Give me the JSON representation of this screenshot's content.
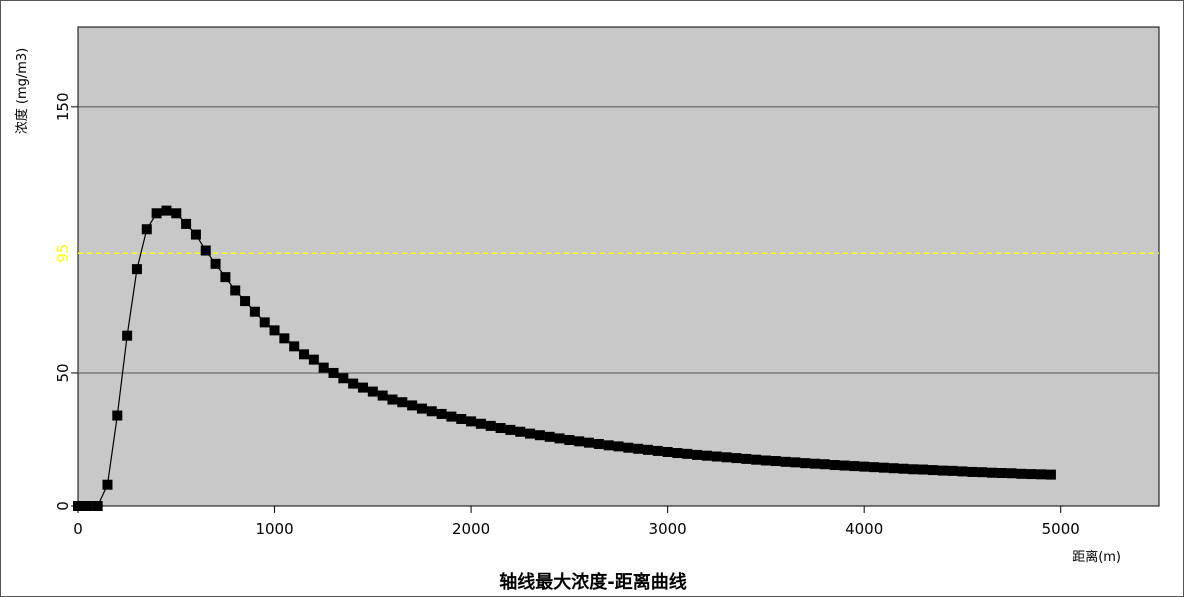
{
  "chart_data": {
    "type": "line",
    "title": "轴线最大浓度-距离曲线",
    "xlabel": "距离(m)",
    "ylabel": "浓度 (mg/m3)",
    "xlim": [
      0,
      5500
    ],
    "ylim": [
      0,
      180
    ],
    "xticks": [
      "0",
      "1000",
      "2000",
      "3000",
      "4000",
      "5000"
    ],
    "yticks": [
      "0",
      "50",
      "150"
    ],
    "reference_line": {
      "value": 95,
      "label": "95",
      "color": "#ffff00",
      "style": "dashed"
    },
    "grid": "horizontal lines at 50 and 150",
    "colors": {
      "plot_background": "#c8c8c8",
      "series": "#000000",
      "gridline": "#555555"
    },
    "series": [
      {
        "marker": "square",
        "x": [
          0,
          50,
          100,
          150,
          200,
          250,
          300,
          350,
          400,
          450,
          500,
          550,
          600,
          650,
          700,
          750,
          800,
          850,
          900,
          950,
          1000,
          1050,
          1100,
          1150,
          1200,
          1250,
          1300,
          1350,
          1400,
          1450,
          1500,
          1550,
          1600,
          1650,
          1700,
          1750,
          1800,
          1850,
          1900,
          1950,
          2000,
          2050,
          2100,
          2150,
          2200,
          2250,
          2300,
          2350,
          2400,
          2450,
          2500,
          2550,
          2600,
          2650,
          2700,
          2750,
          2800,
          2850,
          2900,
          2950,
          3000,
          3050,
          3100,
          3150,
          3200,
          3250,
          3300,
          3350,
          3400,
          3450,
          3500,
          3550,
          3600,
          3650,
          3700,
          3750,
          3800,
          3850,
          3900,
          3950,
          4000,
          4050,
          4100,
          4150,
          4200,
          4250,
          4300,
          4350,
          4400,
          4450,
          4500,
          4550,
          4600,
          4650,
          4700,
          4750,
          4800,
          4850,
          4900,
          4950
        ],
        "y": [
          0,
          0,
          0,
          8,
          34,
          64,
          89,
          104,
          110,
          111,
          110,
          106,
          102,
          96,
          91,
          86,
          81,
          77,
          73,
          69,
          66,
          63,
          60,
          57,
          55,
          52,
          50,
          48,
          46,
          44.5,
          43,
          41.5,
          40,
          39,
          37.8,
          36.6,
          35.6,
          34.6,
          33.6,
          32.7,
          31.8,
          30.9,
          30.1,
          29.3,
          28.6,
          27.9,
          27.2,
          26.6,
          26,
          25.4,
          24.8,
          24.3,
          23.8,
          23.3,
          22.8,
          22.4,
          21.9,
          21.5,
          21.1,
          20.7,
          20.3,
          19.9,
          19.6,
          19.2,
          18.9,
          18.6,
          18.3,
          18,
          17.7,
          17.4,
          17.1,
          16.9,
          16.6,
          16.4,
          16.1,
          15.9,
          15.7,
          15.4,
          15.2,
          15,
          14.8,
          14.6,
          14.4,
          14.2,
          14,
          13.8,
          13.7,
          13.5,
          13.3,
          13.2,
          13,
          12.8,
          12.7,
          12.5,
          12.4,
          12.3,
          12.1,
          12,
          11.9,
          11.8
        ]
      }
    ]
  }
}
